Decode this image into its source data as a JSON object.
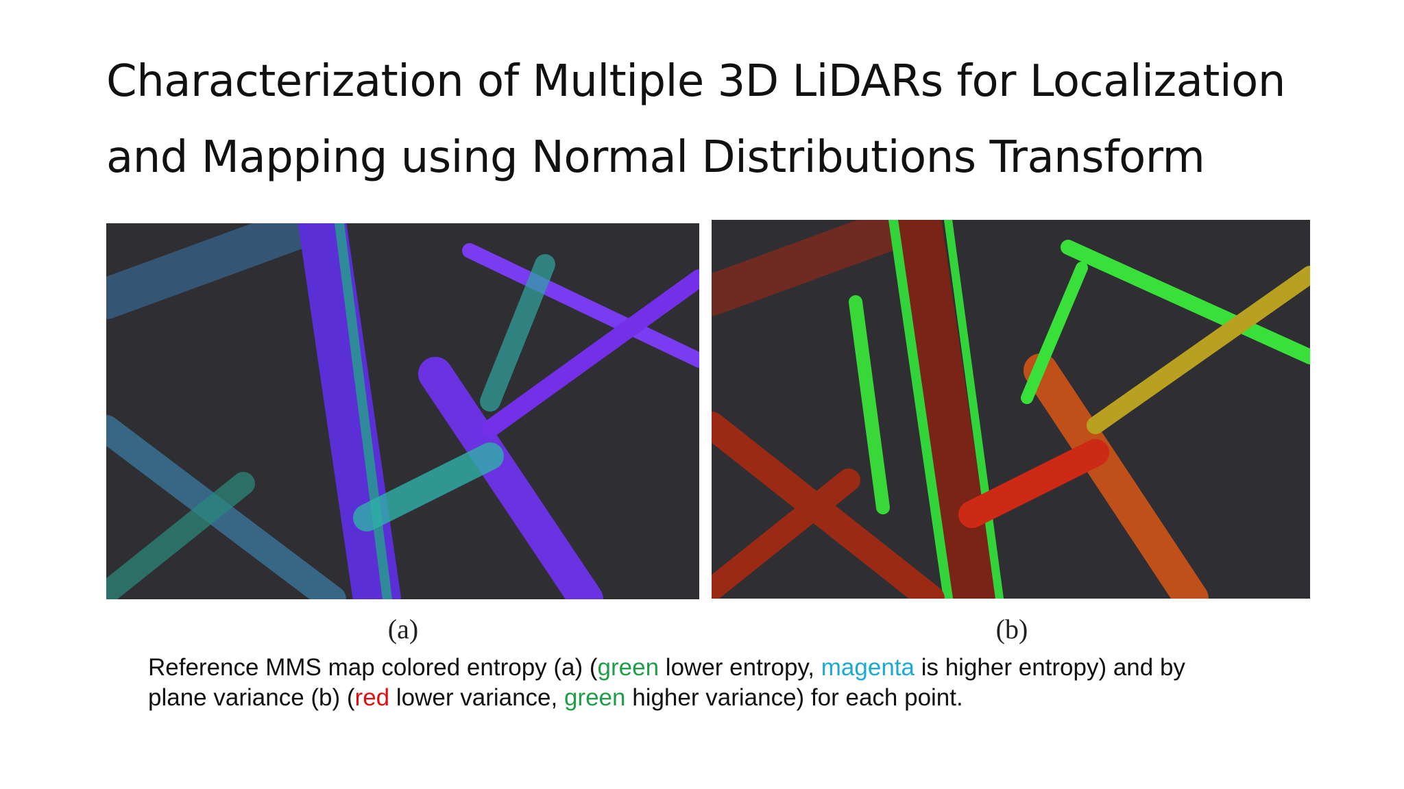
{
  "title": {
    "lines": [
      "Characterization of Multiple 3D LiDARs for Localization",
      "and Mapping using Normal Distributions Transform"
    ]
  },
  "figures": [
    {
      "label": "(a)"
    },
    {
      "label": "(b)"
    }
  ],
  "caption": {
    "lines": [
      {
        "segments": [
          {
            "text": "Reference MMS map colored entropy (a) (",
            "color": "#111111"
          },
          {
            "text": "green",
            "color": "#1f9e4a"
          },
          {
            "text": " lower entropy, ",
            "color": "#111111"
          },
          {
            "text": "magenta",
            "color": "#1aaad4"
          },
          {
            "text": " is higher entropy) and by",
            "color": "#111111"
          }
        ]
      },
      {
        "segments": [
          {
            "text": "plane variance (b) (",
            "color": "#111111"
          },
          {
            "text": "red",
            "color": "#e01010"
          },
          {
            "text": " lower variance, ",
            "color": "#111111"
          },
          {
            "text": "green",
            "color": "#1f9e4a"
          },
          {
            "text": " higher variance) for each point.",
            "color": "#111111"
          }
        ]
      }
    ]
  }
}
